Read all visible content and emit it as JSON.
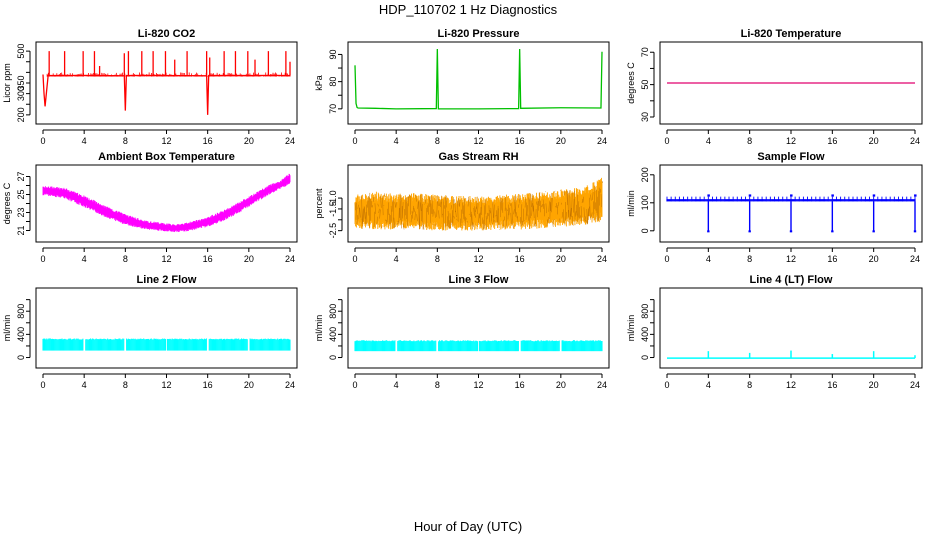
{
  "figure": {
    "title": "HDP_110702  1 Hz Diagnostics",
    "xlabel": "Hour of Day (UTC)"
  },
  "chart_data": [
    {
      "type": "line",
      "title": "Li-820 CO2",
      "ylabel": "Licor ppm",
      "xlim": [
        0,
        24
      ],
      "ylim": [
        190,
        510
      ],
      "xticks": [
        0,
        4,
        8,
        12,
        16,
        20,
        24
      ],
      "yticks": [
        200,
        250,
        300,
        350,
        400,
        450,
        500
      ],
      "ytick_labels": [
        "200",
        "",
        "300",
        "350",
        "",
        "",
        "500"
      ],
      "color": "#ff0000",
      "series": [
        {
          "x": [
            0,
            0.1,
            0.2,
            0.5,
            2,
            3.8,
            5,
            7.9,
            8,
            8.1,
            10,
            12,
            15.9,
            16,
            16.1,
            18,
            20,
            22,
            24
          ],
          "y": [
            390,
            300,
            240,
            385,
            385,
            386,
            385,
            384,
            220,
            385,
            386,
            385,
            384,
            200,
            385,
            386,
            385,
            386,
            385
          ]
        }
      ],
      "spikes": [
        {
          "x": 0.6,
          "y": 500
        },
        {
          "x": 2.1,
          "y": 500
        },
        {
          "x": 3.9,
          "y": 500
        },
        {
          "x": 5.0,
          "y": 500
        },
        {
          "x": 5.5,
          "y": 430
        },
        {
          "x": 7.9,
          "y": 490
        },
        {
          "x": 8.3,
          "y": 500
        },
        {
          "x": 9.6,
          "y": 500
        },
        {
          "x": 10.7,
          "y": 500
        },
        {
          "x": 11.9,
          "y": 500
        },
        {
          "x": 12.8,
          "y": 460
        },
        {
          "x": 14.0,
          "y": 500
        },
        {
          "x": 15.9,
          "y": 500
        },
        {
          "x": 16.2,
          "y": 470
        },
        {
          "x": 17.6,
          "y": 500
        },
        {
          "x": 18.7,
          "y": 500
        },
        {
          "x": 19.9,
          "y": 500
        },
        {
          "x": 20.6,
          "y": 460
        },
        {
          "x": 21.9,
          "y": 500
        },
        {
          "x": 23.6,
          "y": 500
        },
        {
          "x": 24.0,
          "y": 450
        }
      ]
    },
    {
      "type": "line",
      "title": "Li-820 Pressure",
      "ylabel": "kPa",
      "xlim": [
        0,
        24
      ],
      "ylim": [
        67,
        92
      ],
      "xticks": [
        0,
        4,
        8,
        12,
        16,
        20,
        24
      ],
      "yticks": [
        70,
        75,
        80,
        85,
        90
      ],
      "ytick_labels": [
        "70",
        "",
        "80",
        "",
        "90"
      ],
      "color": "#00c000",
      "series": [
        {
          "x": [
            0,
            0.1,
            0.2,
            0.3,
            2,
            4,
            7.9,
            8,
            8.1,
            12,
            15.9,
            16,
            16.1,
            20,
            23.9,
            24
          ],
          "y": [
            86,
            72,
            70.5,
            70.3,
            70.2,
            70.0,
            70.1,
            92,
            70.0,
            70.0,
            70.1,
            92,
            70.2,
            70.4,
            70.3,
            91
          ]
        }
      ]
    },
    {
      "type": "line",
      "title": "Li-820 Temperature",
      "ylabel": "degrees C",
      "xlim": [
        0,
        24
      ],
      "ylim": [
        30,
        72
      ],
      "xticks": [
        0,
        4,
        8,
        12,
        16,
        20,
        24
      ],
      "yticks": [
        30,
        40,
        50,
        60,
        70
      ],
      "ytick_labels": [
        "30",
        "",
        "50",
        "",
        "70"
      ],
      "color": "#e0006e",
      "series": [
        {
          "x": [
            0,
            24
          ],
          "y": [
            51,
            51
          ]
        }
      ]
    },
    {
      "type": "area",
      "title": "Ambient Box Temperature",
      "ylabel": "degrees C",
      "xlim": [
        0,
        24
      ],
      "ylim": [
        20.5,
        27.5
      ],
      "xticks": [
        0,
        4,
        8,
        12,
        16,
        20,
        24
      ],
      "yticks": [
        21,
        22,
        23,
        24,
        25,
        26,
        27
      ],
      "ytick_labels": [
        "21",
        "",
        "23",
        "",
        "25",
        "",
        "27"
      ],
      "color": "#ff00ff",
      "x": [
        0,
        2,
        4,
        6,
        8,
        10,
        12,
        13,
        14,
        16,
        18,
        20,
        22,
        23,
        24
      ],
      "lower": [
        24.9,
        24.6,
        23.6,
        22.5,
        21.6,
        21.1,
        20.9,
        20.8,
        20.9,
        21.4,
        22.3,
        23.6,
        25.0,
        25.6,
        26.1
      ],
      "upper": [
        26.0,
        25.8,
        24.9,
        23.8,
        22.8,
        22.1,
        21.8,
        21.7,
        21.9,
        22.5,
        23.5,
        24.8,
        26.1,
        26.5,
        27.4
      ]
    },
    {
      "type": "area",
      "title": "Gas Stream RH",
      "ylabel": "percent",
      "xlim": [
        0,
        24
      ],
      "ylim": [
        -2.7,
        0.2
      ],
      "xticks": [
        0,
        4,
        8,
        12,
        16,
        20,
        24
      ],
      "yticks": [
        -2.5,
        -2.0,
        -1.5,
        -1.0
      ],
      "ytick_labels": [
        "-2.5",
        "",
        "-1.5",
        "-1.0"
      ],
      "color": "#ffa500",
      "x": [
        0,
        2,
        4,
        6,
        8,
        10,
        12,
        14,
        16,
        18,
        20,
        22,
        23,
        24
      ],
      "lower": [
        -2.4,
        -2.45,
        -2.45,
        -2.45,
        -2.5,
        -2.5,
        -2.5,
        -2.45,
        -2.45,
        -2.4,
        -2.35,
        -2.25,
        -2.2,
        -2.1
      ],
      "upper": [
        -0.8,
        -0.7,
        -0.8,
        -0.75,
        -0.85,
        -0.9,
        -0.9,
        -0.85,
        -0.8,
        -0.7,
        -0.6,
        -0.5,
        -0.3,
        0.0
      ]
    },
    {
      "type": "line",
      "title": "Sample Flow",
      "ylabel": "ml/min",
      "xlim": [
        0,
        24
      ],
      "ylim": [
        -15,
        210
      ],
      "xticks": [
        0,
        4,
        8,
        12,
        16,
        20,
        24
      ],
      "yticks": [
        0,
        100,
        200
      ],
      "ytick_labels": [
        "0",
        "100",
        "200"
      ],
      "color": "#0000ff",
      "band": [
        105,
        122
      ],
      "drops": [
        4,
        8,
        12,
        16,
        20,
        24
      ],
      "drop_value": -2
    },
    {
      "type": "area",
      "title": "Line 2 Flow",
      "ylabel": "ml/min",
      "xlim": [
        0,
        24
      ],
      "ylim": [
        -60,
        1080
      ],
      "xticks": [
        0,
        4,
        8,
        12,
        16,
        20,
        24
      ],
      "yticks": [
        0,
        200,
        400,
        600,
        800,
        1000
      ],
      "ytick_labels": [
        "0",
        "",
        "400",
        "",
        "800",
        ""
      ],
      "color": "#00ffff",
      "band": [
        120,
        330
      ],
      "gaps": [
        4,
        8,
        12,
        16,
        20
      ]
    },
    {
      "type": "area",
      "title": "Line 3 Flow",
      "ylabel": "ml/min",
      "xlim": [
        0,
        24
      ],
      "ylim": [
        -60,
        1080
      ],
      "xticks": [
        0,
        4,
        8,
        12,
        16,
        20,
        24
      ],
      "yticks": [
        0,
        200,
        400,
        600,
        800,
        1000
      ],
      "ytick_labels": [
        "0",
        "",
        "400",
        "",
        "800",
        ""
      ],
      "color": "#00ffff",
      "band": [
        110,
        300
      ],
      "gaps": [
        4,
        8,
        12,
        16,
        20
      ]
    },
    {
      "type": "line",
      "title": "Line 4 (LT) Flow",
      "ylabel": "ml/min",
      "xlim": [
        0,
        24
      ],
      "ylim": [
        -60,
        1080
      ],
      "xticks": [
        0,
        4,
        8,
        12,
        16,
        20,
        24
      ],
      "yticks": [
        0,
        200,
        400,
        600,
        800,
        1000
      ],
      "ytick_labels": [
        "0",
        "",
        "400",
        "",
        "800",
        ""
      ],
      "color": "#00ffff",
      "baseline": -10,
      "spikes": [
        {
          "x": 4,
          "y": 110
        },
        {
          "x": 8,
          "y": 80
        },
        {
          "x": 12,
          "y": 120
        },
        {
          "x": 16,
          "y": 60
        },
        {
          "x": 20,
          "y": 110
        },
        {
          "x": 24,
          "y": 40
        }
      ]
    }
  ]
}
